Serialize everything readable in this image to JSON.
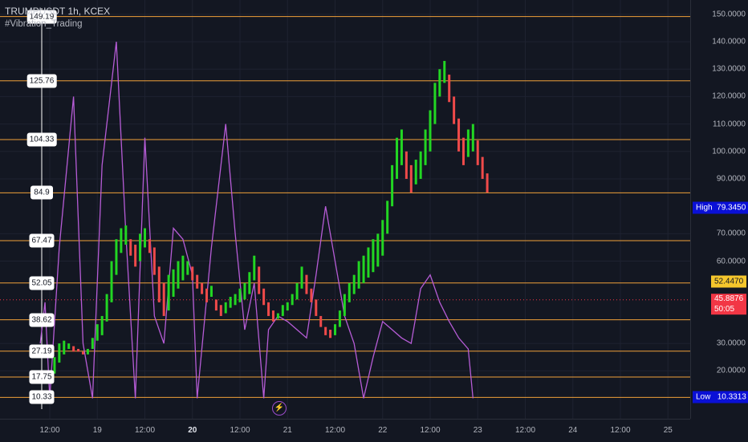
{
  "legend": {
    "symbol": "TRUMPUSDT 1h, KCEX",
    "indicator": "#Vibration_Trading"
  },
  "chart_data": {
    "type": "candlestick",
    "ylim": [
      5,
      155
    ],
    "price_ticks": [
      "150.0000",
      "140.0000",
      "130.0000",
      "120.0000",
      "110.0000",
      "100.0000",
      "90.0000",
      "70.0000",
      "60.0000",
      "30.0000",
      "20.0000"
    ],
    "time_labels": [
      {
        "label": "12:00",
        "x": 0
      },
      {
        "label": "19",
        "x": 0.5
      },
      {
        "label": "12:00",
        "x": 1
      },
      {
        "label": "20",
        "x": 1.5,
        "bold": true
      },
      {
        "label": "12:00",
        "x": 2
      },
      {
        "label": "21",
        "x": 2.5
      },
      {
        "label": "12:00",
        "x": 3
      },
      {
        "label": "22",
        "x": 3.5
      },
      {
        "label": "12:00",
        "x": 4
      },
      {
        "label": "23",
        "x": 4.5
      },
      {
        "label": "12:00",
        "x": 5
      },
      {
        "label": "24",
        "x": 5.5
      },
      {
        "label": "12:00",
        "x": 6
      },
      {
        "label": "25",
        "x": 6.5
      }
    ],
    "levels": [
      149.19,
      125.76,
      104.33,
      84.9,
      67.47,
      52.05,
      38.62,
      27.19,
      17.75,
      10.33
    ],
    "level_labels": [
      "149.19",
      "125.76",
      "104.33",
      "84.9",
      "67.47",
      "52.05",
      "38.62",
      "27.19",
      "17.75",
      "10.33"
    ],
    "high": {
      "label": "High",
      "value": "79.3450",
      "y": 79.345
    },
    "low": {
      "label": "Low",
      "value": "10.3313",
      "y": 10.3313
    },
    "level_tag": {
      "value": "52.4470",
      "y": 52.447
    },
    "last_price": {
      "value": "45.8876",
      "countdown": "50:05",
      "y": 45.8876
    },
    "candles": [
      [
        0.0,
        17,
        20
      ],
      [
        0.05,
        19,
        25
      ],
      [
        0.1,
        23,
        30
      ],
      [
        0.15,
        26,
        31
      ],
      [
        0.2,
        28,
        30
      ],
      [
        0.25,
        27,
        29
      ],
      [
        0.3,
        27,
        28
      ],
      [
        0.35,
        26,
        27
      ],
      [
        0.4,
        26,
        28
      ],
      [
        0.45,
        28,
        32
      ],
      [
        0.5,
        31,
        37
      ],
      [
        0.55,
        33,
        40
      ],
      [
        0.6,
        38,
        48
      ],
      [
        0.65,
        45,
        60
      ],
      [
        0.7,
        55,
        68
      ],
      [
        0.75,
        63,
        72
      ],
      [
        0.8,
        66,
        73
      ],
      [
        0.85,
        62,
        68
      ],
      [
        0.9,
        58,
        66
      ],
      [
        0.95,
        60,
        70
      ],
      [
        1.0,
        65,
        72
      ],
      [
        1.05,
        63,
        68
      ],
      [
        1.1,
        55,
        65
      ],
      [
        1.15,
        45,
        58
      ],
      [
        1.2,
        40,
        52
      ],
      [
        1.25,
        42,
        55
      ],
      [
        1.3,
        47,
        57
      ],
      [
        1.35,
        50,
        60
      ],
      [
        1.4,
        53,
        62
      ],
      [
        1.45,
        55,
        60
      ],
      [
        1.5,
        53,
        58
      ],
      [
        1.55,
        50,
        55
      ],
      [
        1.6,
        48,
        52
      ],
      [
        1.65,
        45,
        50
      ],
      [
        1.7,
        47,
        51
      ],
      [
        1.75,
        42,
        46
      ],
      [
        1.8,
        40,
        44
      ],
      [
        1.85,
        41,
        45
      ],
      [
        1.9,
        43,
        47
      ],
      [
        1.95,
        44,
        48
      ],
      [
        2.0,
        45,
        50
      ],
      [
        2.05,
        46,
        52
      ],
      [
        2.1,
        48,
        56
      ],
      [
        2.15,
        53,
        62
      ],
      [
        2.2,
        48,
        58
      ],
      [
        2.25,
        44,
        50
      ],
      [
        2.3,
        40,
        45
      ],
      [
        2.35,
        38,
        42
      ],
      [
        2.4,
        39,
        41
      ],
      [
        2.45,
        40,
        44
      ],
      [
        2.5,
        42,
        45
      ],
      [
        2.55,
        44,
        48
      ],
      [
        2.6,
        46,
        52
      ],
      [
        2.65,
        50,
        58
      ],
      [
        2.7,
        48,
        55
      ],
      [
        2.75,
        45,
        50
      ],
      [
        2.8,
        40,
        46
      ],
      [
        2.85,
        36,
        40
      ],
      [
        2.9,
        33,
        36
      ],
      [
        2.95,
        32,
        35
      ],
      [
        3.0,
        33,
        37
      ],
      [
        3.05,
        36,
        42
      ],
      [
        3.1,
        40,
        48
      ],
      [
        3.15,
        45,
        52
      ],
      [
        3.2,
        48,
        55
      ],
      [
        3.25,
        50,
        60
      ],
      [
        3.3,
        52,
        62
      ],
      [
        3.35,
        54,
        65
      ],
      [
        3.4,
        56,
        68
      ],
      [
        3.45,
        58,
        70
      ],
      [
        3.5,
        62,
        75
      ],
      [
        3.55,
        70,
        82
      ],
      [
        3.6,
        80,
        95
      ],
      [
        3.65,
        90,
        105
      ],
      [
        3.7,
        95,
        108
      ],
      [
        3.75,
        90,
        100
      ],
      [
        3.8,
        85,
        95
      ],
      [
        3.85,
        88,
        97
      ],
      [
        3.9,
        90,
        100
      ],
      [
        3.95,
        95,
        108
      ],
      [
        4.0,
        100,
        115
      ],
      [
        4.05,
        110,
        125
      ],
      [
        4.1,
        120,
        130
      ],
      [
        4.15,
        125,
        133
      ],
      [
        4.2,
        118,
        128
      ],
      [
        4.25,
        110,
        120
      ],
      [
        4.3,
        100,
        112
      ],
      [
        4.35,
        95,
        105
      ],
      [
        4.4,
        98,
        108
      ],
      [
        4.45,
        100,
        110
      ],
      [
        4.5,
        95,
        104
      ],
      [
        4.55,
        90,
        98
      ],
      [
        4.6,
        85,
        92
      ]
    ],
    "vibration": [
      [
        -0.1,
        30
      ],
      [
        -0.05,
        45
      ],
      [
        0.0,
        10
      ],
      [
        0.1,
        65
      ],
      [
        0.25,
        120
      ],
      [
        0.35,
        30
      ],
      [
        0.45,
        10
      ],
      [
        0.55,
        95
      ],
      [
        0.7,
        140
      ],
      [
        0.8,
        70
      ],
      [
        0.9,
        10
      ],
      [
        1.0,
        105
      ],
      [
        1.1,
        40
      ],
      [
        1.2,
        30
      ],
      [
        1.3,
        72
      ],
      [
        1.4,
        68
      ],
      [
        1.5,
        55
      ],
      [
        1.55,
        10
      ],
      [
        1.7,
        65
      ],
      [
        1.85,
        110
      ],
      [
        1.95,
        70
      ],
      [
        2.05,
        35
      ],
      [
        2.15,
        52
      ],
      [
        2.25,
        10
      ],
      [
        2.3,
        35
      ],
      [
        2.4,
        40
      ],
      [
        2.5,
        38
      ],
      [
        2.6,
        35
      ],
      [
        2.7,
        32
      ],
      [
        2.8,
        55
      ],
      [
        2.9,
        80
      ],
      [
        3.0,
        60
      ],
      [
        3.1,
        40
      ],
      [
        3.2,
        30
      ],
      [
        3.3,
        10
      ],
      [
        3.4,
        25
      ],
      [
        3.5,
        38
      ],
      [
        3.6,
        35
      ],
      [
        3.7,
        32
      ],
      [
        3.8,
        30
      ],
      [
        3.9,
        50
      ],
      [
        4.0,
        55
      ],
      [
        4.1,
        45
      ],
      [
        4.2,
        38
      ],
      [
        4.3,
        32
      ],
      [
        4.4,
        28
      ],
      [
        4.45,
        10
      ]
    ]
  },
  "colors": {
    "level": "#f0a03a",
    "bull": "#22d623",
    "bear": "#ef4a4a",
    "vib": "#b65cd6",
    "dot": "#f23645"
  }
}
